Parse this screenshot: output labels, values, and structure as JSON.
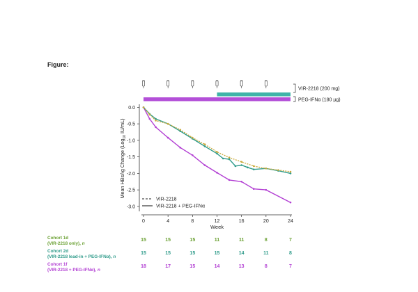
{
  "figure_label": "Figure:",
  "chart_data": {
    "type": "line",
    "xlabel": "Week",
    "ylabel_main": "Mean HBsAg Change (Log",
    "ylabel_sub": "10",
    "ylabel_end": " IU/mL)",
    "xlim": [
      0,
      24
    ],
    "ylim": [
      -3.15,
      0.05
    ],
    "xticks": [
      0,
      4,
      8,
      12,
      16,
      20,
      24
    ],
    "yticks": [
      0.0,
      -0.5,
      -1.0,
      -1.5,
      -2.0,
      -2.5,
      -3.0
    ],
    "ytick_labels": [
      "0.0",
      "-0.5",
      "-1.0",
      "-1.5",
      "-2.0",
      "-2.5",
      "-3.0"
    ],
    "series": [
      {
        "name": "VIR-2218",
        "style": "dashed",
        "color": "#c9a93a",
        "x": [
          0,
          1,
          2,
          4,
          6,
          8,
          10,
          12,
          14,
          16,
          18,
          20,
          22,
          24
        ],
        "y": [
          0,
          -0.22,
          -0.4,
          -0.5,
          -0.68,
          -0.92,
          -1.12,
          -1.35,
          -1.52,
          -1.65,
          -1.78,
          -1.85,
          -1.9,
          -1.95
        ]
      },
      {
        "name": "Cohort 2d",
        "style": "solid",
        "color": "#2f9b8a",
        "x": [
          0,
          1,
          2,
          4,
          6,
          8,
          10,
          12,
          13,
          14,
          15,
          16,
          17,
          18,
          20,
          22,
          24
        ],
        "y": [
          0,
          -0.2,
          -0.35,
          -0.5,
          -0.72,
          -0.95,
          -1.18,
          -1.4,
          -1.55,
          -1.57,
          -1.78,
          -1.75,
          -1.82,
          -1.88,
          -1.85,
          -1.92,
          -2.0
        ]
      },
      {
        "name": "VIR-2218 + PEG-IFNα",
        "style": "solid",
        "color": "#b23fd3",
        "x": [
          0,
          1,
          2,
          4,
          6,
          8,
          10,
          12,
          14,
          16,
          18,
          20,
          24
        ],
        "y": [
          0,
          -0.35,
          -0.6,
          -0.92,
          -1.22,
          -1.45,
          -1.75,
          -1.98,
          -2.2,
          -2.25,
          -2.47,
          -2.5,
          -2.88
        ]
      }
    ],
    "legend": [
      {
        "label": "VIR-2218",
        "style": "dashed"
      },
      {
        "label": "VIR-2218 + PEG-IFNα",
        "style": "solid"
      }
    ],
    "dose_weeks": [
      0,
      4,
      8,
      12,
      16,
      20
    ],
    "bars": [
      {
        "label": "VIR-2218 (200 mg)",
        "color": "#3fb4a8",
        "start_week": 12,
        "end_week": 24
      },
      {
        "label": "PEG-IFNα (180 µg)",
        "color": "#b34fd8",
        "start_week": 0,
        "end_week": 24
      }
    ],
    "n_table_weeks": [
      0,
      4,
      8,
      12,
      16,
      20,
      24
    ],
    "n_table": [
      {
        "title": "Cohort 1d",
        "subtitle": "(VIR-2218 only), ",
        "n_label": "n",
        "color": "#6aa032",
        "values": [
          "15",
          "15",
          "15",
          "11",
          "11",
          "8",
          "7"
        ]
      },
      {
        "title": "Cohort 2d",
        "subtitle": "(VIR-2218 lead-in + PEG-IFNα), ",
        "n_label": "n",
        "color": "#2f9b8a",
        "values": [
          "15",
          "15",
          "15",
          "15",
          "14",
          "11",
          "8"
        ]
      },
      {
        "title": "Cohort 1f",
        "subtitle": "(VIR-2218 + PEG-IFNα), ",
        "n_label": "n",
        "color": "#b23fd3",
        "values": [
          "18",
          "17",
          "15",
          "14",
          "13",
          "8",
          "7"
        ]
      }
    ]
  }
}
